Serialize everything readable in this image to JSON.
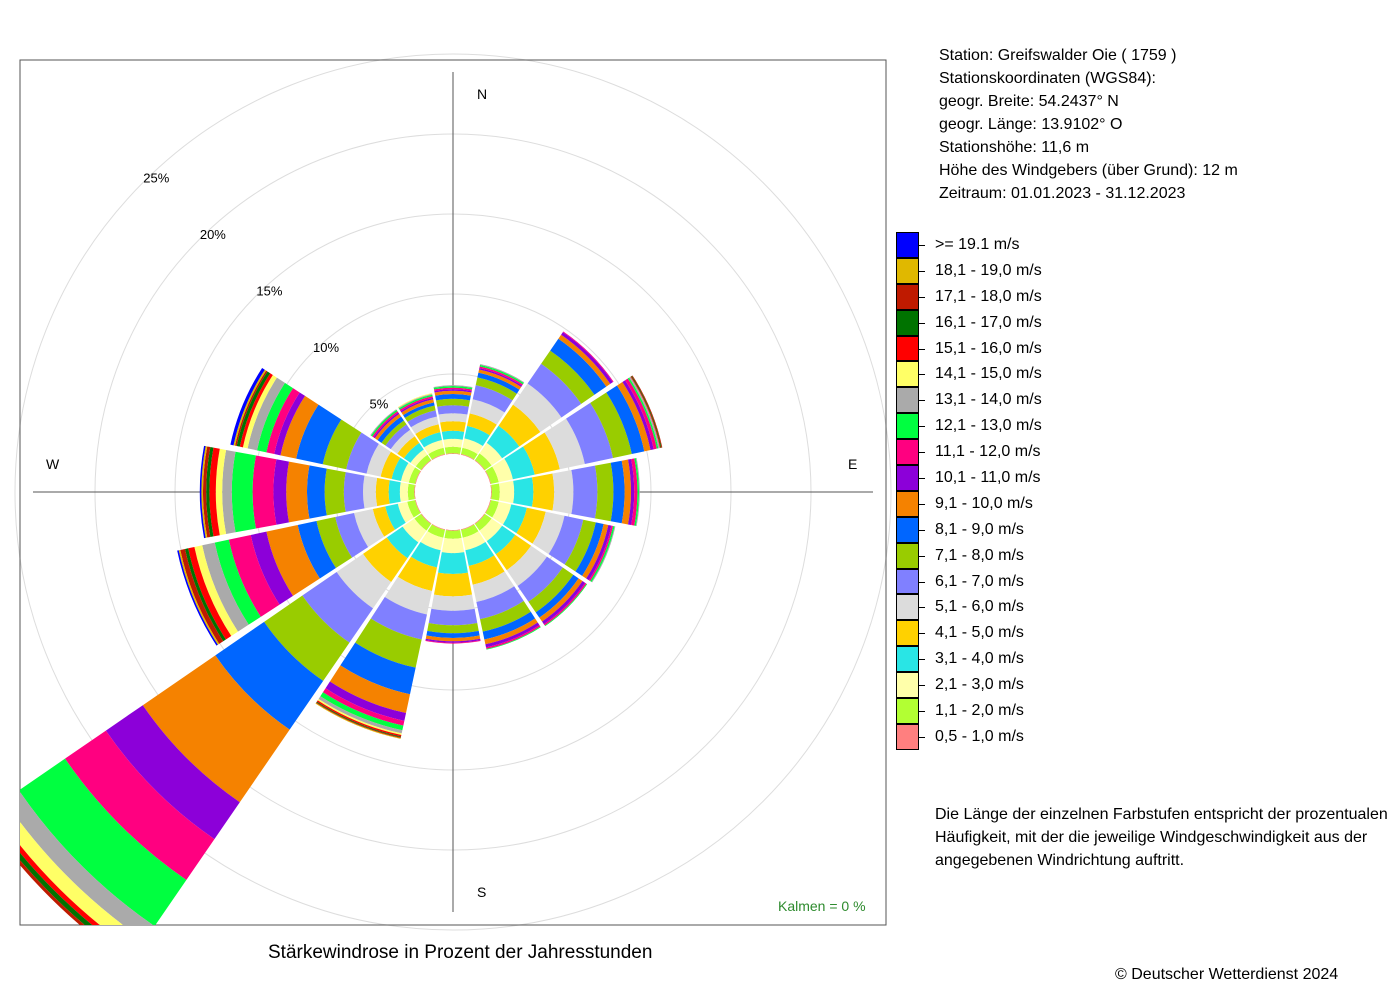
{
  "info": {
    "station": "Station:  Greifswalder Oie  ( 1759 )",
    "coords_title": "Stationskoordinaten (WGS84):",
    "lat": "geogr. Breite: 54.2437° N",
    "lon": "geogr. Länge: 13.9102° O",
    "height": "Stationshöhe: 11,6 m",
    "anemometer": "Höhe des Windgebers (über Grund): 12 m",
    "period": "Zeitraum: 01.01.2023 - 31.12.2023"
  },
  "note": "Die Länge der einzelnen Farbstufen entspricht der prozentualen Häufigkeit, mit der die jeweilige Windgeschwindigkeit aus der angegebenen Windrichtung auftritt.",
  "caption": "Stärkewindrose in Prozent der Jahresstunden",
  "copyright": "© Deutscher Wetterdienst  2024",
  "calm": "Kalmen  =  0 %",
  "chart_data": {
    "type": "wind_rose",
    "title": "Stärkewindrose in Prozent der Jahresstunden",
    "directions": [
      "N",
      "NNE",
      "NE",
      "ENE",
      "E",
      "ESE",
      "SE",
      "SSE",
      "S",
      "SSW",
      "SW",
      "WSW",
      "W",
      "WNW",
      "NW",
      "NNW"
    ],
    "direction_labels": [
      "N",
      "E",
      "S",
      "W"
    ],
    "radial_ticks": [
      "5%",
      "10%",
      "15%",
      "20%",
      "25%"
    ],
    "radial_values": [
      5,
      10,
      15,
      20,
      25
    ],
    "radial_max": 26.5,
    "bins": [
      {
        "label": "0,5 - 1,0 m/s",
        "color": "#ff7f7f"
      },
      {
        "label": "1,1 - 2,0 m/s",
        "color": "#b2ff33"
      },
      {
        "label": "2,1 - 3,0 m/s",
        "color": "#ffffaa"
      },
      {
        "label": "3,1 - 4,0 m/s",
        "color": "#29e5e5"
      },
      {
        "label": "4,1 - 5,0 m/s",
        "color": "#ffd100"
      },
      {
        "label": "5,1 - 6,0 m/s",
        "color": "#dcdcdc"
      },
      {
        "label": "6,1 - 7,0 m/s",
        "color": "#8080ff"
      },
      {
        "label": "7,1 - 8,0 m/s",
        "color": "#99cc00"
      },
      {
        "label": "8,1 - 9,0 m/s",
        "color": "#0066ff"
      },
      {
        "label": "9,1 - 10,0 m/s",
        "color": "#f58200"
      },
      {
        "label": "10,1 - 11,0 m/s",
        "color": "#8c00d9"
      },
      {
        "label": "11,1 - 12,0 m/s",
        "color": "#ff0080"
      },
      {
        "label": "12,1 - 13,0 m/s",
        "color": "#00ff40"
      },
      {
        "label": "13,1 - 14,0 m/s",
        "color": "#aaaaaa"
      },
      {
        "label": "14,1 - 15,0 m/s",
        "color": "#ffff66"
      },
      {
        "label": "15,1 - 16,0 m/s",
        "color": "#ff0000"
      },
      {
        "label": "16,1 - 17,0 m/s",
        "color": "#007300"
      },
      {
        "label": "17,1 - 18,0 m/s",
        "color": "#bf1a00"
      },
      {
        "label": "18,1 - 19,0 m/s",
        "color": "#e0b800"
      },
      {
        "label": ">= 19.1 m/s",
        "color": "#0000ff"
      }
    ],
    "legend_order": [
      19,
      18,
      17,
      16,
      15,
      14,
      13,
      12,
      11,
      10,
      9,
      8,
      7,
      6,
      5,
      4,
      3,
      2,
      1,
      0
    ],
    "series": [
      {
        "direction": "N",
        "values": [
          0.05,
          0.4,
          0.5,
          0.5,
          0.6,
          0.5,
          0.5,
          0.4,
          0.3,
          0.2,
          0.1,
          0.1,
          0.1,
          0.05,
          0,
          0,
          0,
          0,
          0,
          0
        ]
      },
      {
        "direction": "NNE",
        "values": [
          0.05,
          0.4,
          0.6,
          0.8,
          0.8,
          0.9,
          0.9,
          0.5,
          0.3,
          0.2,
          0.1,
          0.1,
          0.1,
          0.05,
          0,
          0,
          0,
          0,
          0,
          0
        ]
      },
      {
        "direction": "NE",
        "values": [
          0.05,
          0.5,
          0.8,
          1.3,
          1.6,
          1.6,
          1.5,
          1.0,
          0.9,
          0.3,
          0.2,
          0.05,
          0,
          0,
          0,
          0,
          0,
          0,
          0,
          0
        ]
      },
      {
        "direction": "ENE",
        "values": [
          0.05,
          0.5,
          0.9,
          1.4,
          1.6,
          1.6,
          1.8,
          1.2,
          0.8,
          0.4,
          0.2,
          0.2,
          0.1,
          0.1,
          0,
          0.05,
          0.05,
          0.05,
          0,
          0
        ]
      },
      {
        "direction": "E",
        "values": [
          0.05,
          0.5,
          0.9,
          1.2,
          1.3,
          1.2,
          1.5,
          1.0,
          0.7,
          0.4,
          0.2,
          0.2,
          0.1,
          0.05,
          0,
          0,
          0,
          0,
          0,
          0
        ]
      },
      {
        "direction": "ESE",
        "values": [
          0.05,
          0.5,
          0.8,
          1.0,
          1.2,
          1.2,
          1.2,
          0.8,
          0.5,
          0.3,
          0.2,
          0.1,
          0.1,
          0.05,
          0,
          0,
          0,
          0,
          0,
          0
        ]
      },
      {
        "direction": "SE",
        "values": [
          0.05,
          0.5,
          0.8,
          1.0,
          1.2,
          1.2,
          1.2,
          0.8,
          0.4,
          0.3,
          0.2,
          0.1,
          0.05,
          0,
          0,
          0,
          0,
          0,
          0,
          0
        ]
      },
      {
        "direction": "SSE",
        "values": [
          0.05,
          0.5,
          0.8,
          1.0,
          1.2,
          1.1,
          1.1,
          0.8,
          0.5,
          0.3,
          0.2,
          0.1,
          0.05,
          0,
          0,
          0,
          0,
          0,
          0,
          0
        ]
      },
      {
        "direction": "S",
        "values": [
          0.05,
          0.5,
          0.9,
          1.3,
          1.4,
          0.9,
          0.9,
          0.5,
          0.3,
          0.2,
          0.1,
          0.05,
          0,
          0,
          0,
          0,
          0,
          0,
          0,
          0
        ]
      },
      {
        "direction": "SSW",
        "values": [
          0.05,
          0.5,
          0.8,
          1.1,
          1.5,
          1.5,
          1.6,
          1.8,
          1.7,
          1.2,
          0.5,
          0.3,
          0.3,
          0.2,
          0.1,
          0.1,
          0.05,
          0.05,
          0.05,
          0
        ]
      },
      {
        "direction": "SW",
        "values": [
          0.05,
          0.5,
          0.9,
          1.2,
          1.8,
          2.0,
          2.6,
          2.9,
          3.7,
          5.5,
          2.8,
          3.1,
          3.5,
          1.1,
          0.9,
          0.3,
          0.3,
          0.2,
          0,
          0
        ]
      },
      {
        "direction": "WSW",
        "values": [
          0.05,
          0.5,
          0.6,
          0.8,
          0.8,
          1.2,
          1.2,
          1.2,
          1.2,
          2.0,
          1.0,
          1.4,
          0.9,
          0.8,
          0.5,
          0.4,
          0.2,
          0.3,
          0.1,
          0.1
        ]
      },
      {
        "direction": "W",
        "values": [
          0.05,
          0.4,
          0.5,
          0.7,
          0.8,
          0.8,
          1.2,
          1.2,
          1.1,
          1.3,
          0.8,
          1.3,
          1.3,
          0.6,
          0.4,
          0.4,
          0.2,
          0.2,
          0.1,
          0.1
        ]
      },
      {
        "direction": "WNW",
        "values": [
          0.05,
          0.4,
          0.5,
          0.6,
          0.7,
          0.9,
          1.3,
          1.5,
          1.7,
          1.0,
          0.4,
          0.5,
          0.6,
          0.6,
          0.3,
          0.2,
          0.2,
          0.1,
          0.1,
          0.2
        ]
      },
      {
        "direction": "NW",
        "values": [
          0.05,
          0.4,
          0.4,
          0.5,
          0.5,
          0.5,
          0.4,
          0.3,
          0.3,
          0.2,
          0.1,
          0.1,
          0.1,
          0.05,
          0,
          0,
          0,
          0,
          0,
          0
        ]
      },
      {
        "direction": "NNW",
        "values": [
          0.05,
          0.4,
          0.5,
          0.5,
          0.5,
          0.5,
          0.4,
          0.3,
          0.2,
          0.2,
          0.1,
          0.1,
          0.1,
          0.05,
          0.05,
          0,
          0,
          0,
          0,
          0
        ]
      }
    ]
  }
}
